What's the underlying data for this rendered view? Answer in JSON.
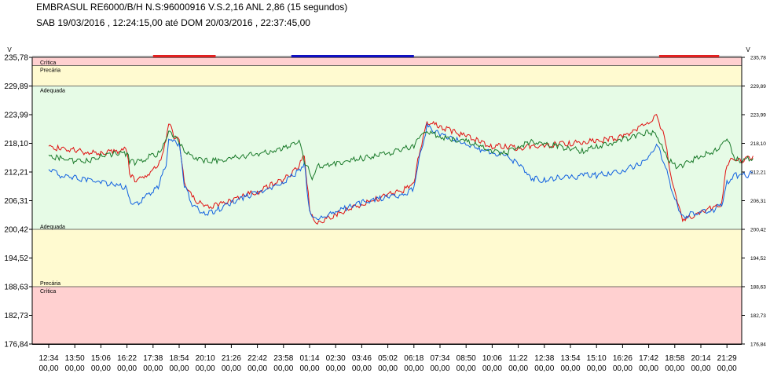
{
  "header": {
    "title": "EMBRASUL RE6000/B/H N.S:96000916  V.S.2,16 ANL 2,86 (15 segundos)",
    "subtitle": "SAB 19/03/2016 , 12:24:15,00 até DOM 20/03/2016 , 22:37:45,00"
  },
  "chart_data": {
    "type": "line",
    "xlabel": "",
    "ylabel": "V",
    "ylim": [
      176.84,
      235.78
    ],
    "y_ticks": [
      "235,78",
      "229,89",
      "223,99",
      "218,10",
      "212,21",
      "206,31",
      "200,42",
      "194,52",
      "188,63",
      "182,73",
      "176,84"
    ],
    "x_tick_times": [
      "12:34",
      "13:50",
      "15:06",
      "16:22",
      "17:38",
      "18:54",
      "20:10",
      "21:26",
      "22:42",
      "23:58",
      "01:14",
      "02:30",
      "03:46",
      "05:02",
      "06:18",
      "07:34",
      "08:50",
      "10:06",
      "11:22",
      "12:38",
      "13:54",
      "15:10",
      "16:26",
      "17:42",
      "18:58",
      "20:14",
      "21:29"
    ],
    "x_tick_fraction": "00,00",
    "zones": [
      {
        "label": "Crítica",
        "from": 234.1,
        "to": 235.78,
        "color": "#ffd0d0"
      },
      {
        "label": "Precária",
        "from": 229.89,
        "to": 234.1,
        "color": "#fffad0"
      },
      {
        "label": "Adequada",
        "from": 200.42,
        "to": 229.89,
        "color": "#e6fbe6"
      },
      {
        "label": "Adequada",
        "from": 200.42,
        "to": 200.42,
        "color": "#e6fbe6"
      },
      {
        "label": "Precária",
        "from": 188.63,
        "to": 200.42,
        "color": "#fffad0"
      },
      {
        "label": "Crítica",
        "from": 176.84,
        "to": 188.63,
        "color": "#ffd0d0"
      }
    ],
    "zone_lines": [
      229.89,
      200.42,
      188.63
    ],
    "top_indicators": [
      {
        "from_tick": 4,
        "to_tick": 6.4,
        "color": "#e02020"
      },
      {
        "from_tick": 9.3,
        "to_tick": 14.0,
        "color": "#1010c0"
      },
      {
        "from_tick": 23.4,
        "to_tick": 25.7,
        "color": "#e02020"
      }
    ],
    "series": [
      {
        "color": "#e01010",
        "x": [
          0,
          0.4,
          1,
          1.5,
          2,
          2.5,
          3,
          3.1,
          3.3,
          3.7,
          4.2,
          4.5,
          4.6,
          4.8,
          5.0,
          5.2,
          5.5,
          6,
          6.5,
          7,
          7.5,
          8,
          8.5,
          9,
          9.6,
          9.8,
          10.0,
          10.1,
          10.3,
          10.6,
          11,
          11.5,
          12,
          12.5,
          13,
          13.6,
          14.0,
          14.2,
          14.5,
          15,
          15.5,
          16,
          16.5,
          17,
          17.5,
          18,
          18.5,
          19,
          19.5,
          20,
          20.5,
          21,
          21.5,
          22,
          22.5,
          23,
          23.3,
          23.6,
          23.9,
          24.1,
          24.3,
          24.6,
          25,
          25.5,
          25.8,
          26,
          26.3,
          26.5,
          26.8,
          27
        ],
        "y": [
          217.5,
          217.0,
          216.7,
          216.2,
          216.0,
          216.4,
          216.8,
          212.0,
          210.5,
          211.3,
          213.5,
          218.5,
          222.5,
          219.5,
          219.0,
          210.0,
          207.0,
          205.0,
          205.5,
          206.5,
          207.5,
          208.0,
          209.5,
          210.5,
          213.5,
          215.5,
          205.0,
          203.0,
          201.5,
          202.5,
          203.5,
          204.5,
          205.5,
          206.5,
          207.5,
          208.5,
          210.0,
          216.0,
          222.5,
          221.5,
          220.5,
          219.5,
          218.5,
          217.5,
          217.5,
          217.0,
          217.5,
          217.5,
          218.0,
          218.0,
          218.5,
          218.5,
          219.0,
          219.5,
          221.0,
          222.5,
          224.0,
          219.5,
          210.0,
          206.0,
          202.5,
          203.0,
          204.0,
          205.0,
          205.5,
          214.0,
          215.0,
          214.5,
          215.0,
          215.5
        ]
      },
      {
        "color": "#1060e0",
        "x": [
          0,
          0.4,
          1,
          1.5,
          2,
          2.5,
          3,
          3.1,
          3.3,
          3.7,
          4.2,
          4.5,
          4.6,
          4.8,
          5.0,
          5.2,
          5.5,
          6,
          6.5,
          7,
          7.5,
          8,
          8.5,
          9,
          9.6,
          9.8,
          10.0,
          10.1,
          10.3,
          10.6,
          11,
          11.5,
          12,
          12.5,
          13,
          13.6,
          14.0,
          14.2,
          14.5,
          15,
          15.5,
          16,
          16.5,
          17,
          17.5,
          18,
          18.5,
          19,
          19.5,
          20,
          20.5,
          21,
          21.5,
          22,
          22.5,
          23,
          23.3,
          23.6,
          23.9,
          24.1,
          24.3,
          24.6,
          25,
          25.5,
          25.8,
          26,
          26.3,
          26.5,
          26.8,
          27
        ],
        "y": [
          213.0,
          211.5,
          211.0,
          210.5,
          210.0,
          209.5,
          209.0,
          206.5,
          205.5,
          207.0,
          209.0,
          214.0,
          219.5,
          218.5,
          218.0,
          209.5,
          205.5,
          203.5,
          204.5,
          206.0,
          207.0,
          208.0,
          209.0,
          210.0,
          212.5,
          214.0,
          204.0,
          203.0,
          202.5,
          203.0,
          204.0,
          205.0,
          206.0,
          206.5,
          207.0,
          207.5,
          209.0,
          215.0,
          221.5,
          220.0,
          219.0,
          218.0,
          217.0,
          216.0,
          215.5,
          214.0,
          211.0,
          210.5,
          211.0,
          211.0,
          211.5,
          211.5,
          212.0,
          212.5,
          213.5,
          215.0,
          218.0,
          214.0,
          208.5,
          205.0,
          203.0,
          203.5,
          204.0,
          204.5,
          205.5,
          210.0,
          211.5,
          211.5,
          211.5,
          212.0
        ]
      },
      {
        "color": "#1a7a2a",
        "x": [
          0,
          0.4,
          1,
          1.5,
          2,
          2.5,
          3,
          3.1,
          3.3,
          3.7,
          4.2,
          4.5,
          4.6,
          4.8,
          5.0,
          5.2,
          5.5,
          6,
          6.5,
          7,
          7.5,
          8,
          8.5,
          9,
          9.6,
          9.8,
          10.0,
          10.1,
          10.3,
          10.6,
          11,
          11.5,
          12,
          12.5,
          13,
          13.6,
          14.0,
          14.2,
          14.5,
          15,
          15.5,
          16,
          16.5,
          17,
          17.5,
          18,
          18.5,
          19,
          19.5,
          20,
          20.5,
          21,
          21.5,
          22,
          22.5,
          23,
          23.3,
          23.6,
          23.9,
          24.1,
          24.3,
          24.6,
          25,
          25.5,
          25.8,
          26,
          26.3,
          26.5,
          26.8,
          27
        ],
        "y": [
          215.5,
          215.0,
          214.5,
          214.5,
          215.5,
          216.0,
          216.0,
          214.5,
          214.0,
          215.0,
          216.0,
          218.5,
          220.5,
          219.5,
          218.5,
          216.5,
          215.5,
          214.5,
          214.5,
          215.0,
          215.5,
          216.0,
          216.5,
          217.0,
          218.5,
          214.5,
          212.5,
          211.0,
          213.5,
          213.5,
          214.0,
          214.5,
          215.0,
          215.5,
          216.0,
          217.0,
          217.5,
          219.5,
          220.5,
          219.5,
          219.0,
          218.5,
          217.5,
          216.5,
          216.0,
          217.5,
          218.5,
          218.0,
          217.5,
          217.0,
          216.5,
          217.5,
          218.0,
          219.0,
          219.5,
          220.5,
          220.0,
          216.0,
          214.0,
          213.0,
          213.5,
          214.5,
          215.5,
          216.5,
          217.5,
          219.0,
          215.0,
          214.5,
          215.0,
          215.0
        ]
      }
    ]
  }
}
